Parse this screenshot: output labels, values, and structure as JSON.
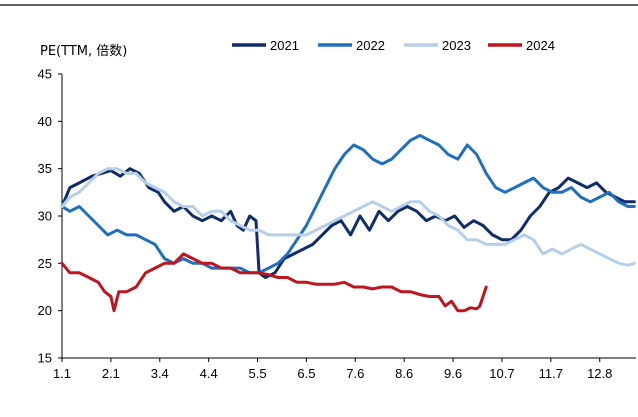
{
  "chart_data": {
    "type": "line",
    "ylabel": "PE(TTM, 倍数)",
    "xlabel": "",
    "ylim": [
      15,
      45
    ],
    "yticks": [
      15,
      20,
      25,
      30,
      35,
      40,
      45
    ],
    "xlim": [
      1,
      365
    ],
    "x_unit": "day of year",
    "xticks": [
      {
        "label": "1.1",
        "x": 1
      },
      {
        "label": "2.1",
        "x": 32
      },
      {
        "label": "3.4",
        "x": 63
      },
      {
        "label": "4.4",
        "x": 94
      },
      {
        "label": "5.5",
        "x": 125
      },
      {
        "label": "6.5",
        "x": 156
      },
      {
        "label": "7.6",
        "x": 187
      },
      {
        "label": "8.6",
        "x": 218
      },
      {
        "label": "9.6",
        "x": 249
      },
      {
        "label": "10.7",
        "x": 280
      },
      {
        "label": "11.7",
        "x": 311
      },
      {
        "label": "12.8",
        "x": 342
      }
    ],
    "grid": false,
    "legend_position": "top",
    "series": [
      {
        "name": "2021",
        "color": "#0f2d6b",
        "points": [
          [
            1,
            31
          ],
          [
            6,
            33
          ],
          [
            12,
            33.5
          ],
          [
            20,
            34.2
          ],
          [
            26,
            34.5
          ],
          [
            32,
            34.8
          ],
          [
            38,
            34.2
          ],
          [
            44,
            35
          ],
          [
            50,
            34.5
          ],
          [
            56,
            33
          ],
          [
            62,
            32.5
          ],
          [
            66,
            31.5
          ],
          [
            72,
            30.5
          ],
          [
            78,
            31
          ],
          [
            84,
            30
          ],
          [
            90,
            29.5
          ],
          [
            96,
            30
          ],
          [
            102,
            29.5
          ],
          [
            108,
            30.5
          ],
          [
            112,
            29
          ],
          [
            116,
            28.5
          ],
          [
            120,
            30
          ],
          [
            124,
            29.5
          ],
          [
            126,
            24
          ],
          [
            130,
            23.5
          ],
          [
            136,
            24
          ],
          [
            142,
            25.5
          ],
          [
            148,
            26
          ],
          [
            154,
            26.5
          ],
          [
            160,
            27
          ],
          [
            166,
            28
          ],
          [
            172,
            29
          ],
          [
            178,
            29.5
          ],
          [
            184,
            28
          ],
          [
            190,
            30
          ],
          [
            196,
            28.5
          ],
          [
            202,
            30.5
          ],
          [
            208,
            29.5
          ],
          [
            214,
            30.5
          ],
          [
            220,
            31
          ],
          [
            226,
            30.5
          ],
          [
            232,
            29.5
          ],
          [
            238,
            30
          ],
          [
            244,
            29.5
          ],
          [
            250,
            30
          ],
          [
            256,
            28.8
          ],
          [
            262,
            29.5
          ],
          [
            268,
            29
          ],
          [
            274,
            28
          ],
          [
            280,
            27.5
          ],
          [
            286,
            27.5
          ],
          [
            292,
            28.5
          ],
          [
            298,
            30
          ],
          [
            304,
            31
          ],
          [
            310,
            32.5
          ],
          [
            316,
            33
          ],
          [
            322,
            34
          ],
          [
            328,
            33.5
          ],
          [
            334,
            33
          ],
          [
            340,
            33.5
          ],
          [
            346,
            32.5
          ],
          [
            352,
            32
          ],
          [
            358,
            31.5
          ],
          [
            364,
            31.5
          ]
        ]
      },
      {
        "name": "2022",
        "color": "#1f6fbf",
        "points": [
          [
            1,
            31
          ],
          [
            6,
            30.5
          ],
          [
            12,
            31
          ],
          [
            18,
            30
          ],
          [
            24,
            29
          ],
          [
            30,
            28
          ],
          [
            36,
            28.5
          ],
          [
            42,
            28
          ],
          [
            48,
            28
          ],
          [
            54,
            27.5
          ],
          [
            60,
            27
          ],
          [
            66,
            25.5
          ],
          [
            72,
            25
          ],
          [
            78,
            25.5
          ],
          [
            84,
            25
          ],
          [
            90,
            25
          ],
          [
            96,
            24.5
          ],
          [
            102,
            24.5
          ],
          [
            108,
            24.5
          ],
          [
            114,
            24.5
          ],
          [
            120,
            24
          ],
          [
            126,
            24
          ],
          [
            132,
            24.5
          ],
          [
            138,
            25
          ],
          [
            144,
            26
          ],
          [
            150,
            27.5
          ],
          [
            156,
            29
          ],
          [
            162,
            31
          ],
          [
            168,
            33
          ],
          [
            174,
            35
          ],
          [
            180,
            36.5
          ],
          [
            186,
            37.5
          ],
          [
            192,
            37
          ],
          [
            198,
            36
          ],
          [
            204,
            35.5
          ],
          [
            210,
            36
          ],
          [
            216,
            37
          ],
          [
            222,
            38
          ],
          [
            228,
            38.5
          ],
          [
            234,
            38
          ],
          [
            240,
            37.5
          ],
          [
            246,
            36.5
          ],
          [
            252,
            36
          ],
          [
            258,
            37.5
          ],
          [
            264,
            36.5
          ],
          [
            270,
            34.5
          ],
          [
            276,
            33
          ],
          [
            282,
            32.5
          ],
          [
            288,
            33
          ],
          [
            294,
            33.5
          ],
          [
            300,
            34
          ],
          [
            306,
            33
          ],
          [
            312,
            32.5
          ],
          [
            318,
            32.5
          ],
          [
            324,
            33
          ],
          [
            330,
            32
          ],
          [
            336,
            31.5
          ],
          [
            342,
            32
          ],
          [
            348,
            32.5
          ],
          [
            354,
            31.5
          ],
          [
            360,
            31
          ],
          [
            364,
            31
          ]
        ]
      },
      {
        "name": "2023",
        "color": "#b5cfe8",
        "points": [
          [
            1,
            31
          ],
          [
            6,
            32
          ],
          [
            12,
            32.5
          ],
          [
            18,
            33.5
          ],
          [
            24,
            34.5
          ],
          [
            30,
            35
          ],
          [
            36,
            35
          ],
          [
            42,
            34.5
          ],
          [
            48,
            34.5
          ],
          [
            54,
            33.5
          ],
          [
            60,
            33
          ],
          [
            66,
            32.5
          ],
          [
            72,
            31.5
          ],
          [
            78,
            31
          ],
          [
            84,
            31
          ],
          [
            90,
            30
          ],
          [
            96,
            30.5
          ],
          [
            102,
            30.5
          ],
          [
            108,
            29.5
          ],
          [
            114,
            29
          ],
          [
            120,
            28.5
          ],
          [
            126,
            28.5
          ],
          [
            132,
            28
          ],
          [
            138,
            28
          ],
          [
            144,
            28
          ],
          [
            150,
            28
          ],
          [
            156,
            28
          ],
          [
            162,
            28.5
          ],
          [
            168,
            29
          ],
          [
            174,
            29.5
          ],
          [
            180,
            30
          ],
          [
            186,
            30.5
          ],
          [
            192,
            31
          ],
          [
            198,
            31.5
          ],
          [
            204,
            31
          ],
          [
            210,
            30.5
          ],
          [
            216,
            31
          ],
          [
            222,
            31.5
          ],
          [
            228,
            31.5
          ],
          [
            234,
            30.5
          ],
          [
            240,
            30
          ],
          [
            246,
            29
          ],
          [
            252,
            28.5
          ],
          [
            258,
            27.5
          ],
          [
            264,
            27.5
          ],
          [
            270,
            27
          ],
          [
            276,
            27
          ],
          [
            282,
            27
          ],
          [
            288,
            27.5
          ],
          [
            294,
            28
          ],
          [
            300,
            27.5
          ],
          [
            306,
            26
          ],
          [
            312,
            26.5
          ],
          [
            318,
            26
          ],
          [
            324,
            26.5
          ],
          [
            330,
            27
          ],
          [
            336,
            26.5
          ],
          [
            342,
            26
          ],
          [
            348,
            25.5
          ],
          [
            354,
            25
          ],
          [
            360,
            24.8
          ],
          [
            364,
            25
          ]
        ]
      },
      {
        "name": "2024",
        "color": "#c0141e",
        "points": [
          [
            1,
            25
          ],
          [
            6,
            24
          ],
          [
            12,
            24
          ],
          [
            18,
            23.5
          ],
          [
            24,
            23
          ],
          [
            28,
            22
          ],
          [
            32,
            21.5
          ],
          [
            34,
            20
          ],
          [
            37,
            22
          ],
          [
            42,
            22
          ],
          [
            48,
            22.5
          ],
          [
            54,
            24
          ],
          [
            60,
            24.5
          ],
          [
            66,
            25
          ],
          [
            72,
            25
          ],
          [
            78,
            26
          ],
          [
            84,
            25.5
          ],
          [
            90,
            25
          ],
          [
            96,
            25
          ],
          [
            102,
            24.5
          ],
          [
            108,
            24.5
          ],
          [
            114,
            24
          ],
          [
            120,
            24
          ],
          [
            126,
            24
          ],
          [
            132,
            23.8
          ],
          [
            138,
            23.5
          ],
          [
            144,
            23.5
          ],
          [
            150,
            23
          ],
          [
            156,
            23
          ],
          [
            162,
            22.8
          ],
          [
            168,
            22.8
          ],
          [
            174,
            22.8
          ],
          [
            180,
            23
          ],
          [
            186,
            22.5
          ],
          [
            192,
            22.5
          ],
          [
            198,
            22.3
          ],
          [
            204,
            22.5
          ],
          [
            210,
            22.5
          ],
          [
            216,
            22
          ],
          [
            222,
            22
          ],
          [
            228,
            21.7
          ],
          [
            234,
            21.5
          ],
          [
            240,
            21.5
          ],
          [
            244,
            20.5
          ],
          [
            248,
            21
          ],
          [
            252,
            20
          ],
          [
            256,
            20
          ],
          [
            260,
            20.3
          ],
          [
            264,
            20.2
          ],
          [
            266,
            20.5
          ],
          [
            268,
            21.5
          ],
          [
            270,
            22.5
          ]
        ]
      }
    ]
  }
}
